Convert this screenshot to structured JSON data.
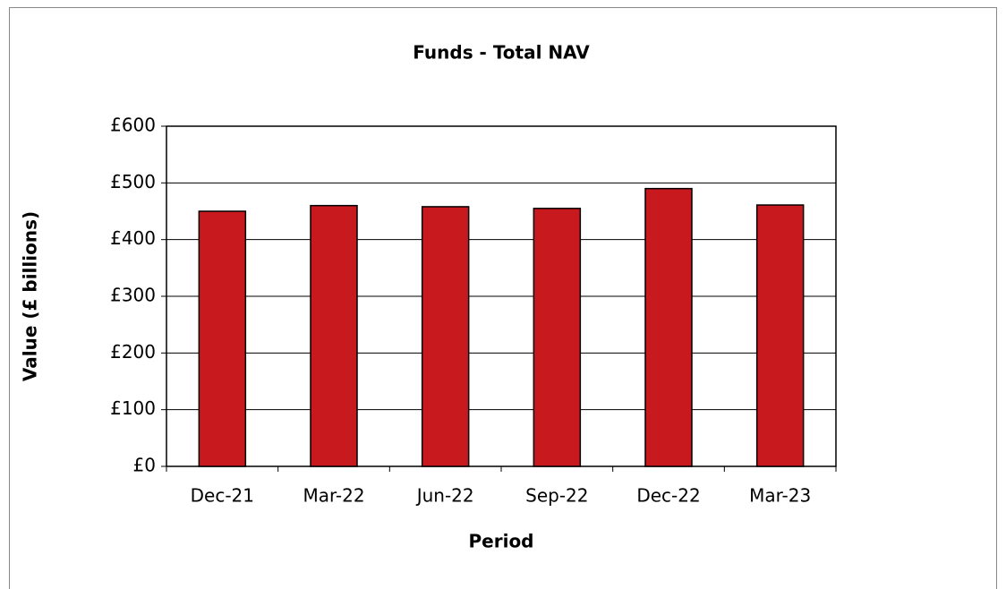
{
  "chart_data": {
    "type": "bar",
    "title": "Funds - Total NAV",
    "x_label": "Period",
    "y_label": "Value (£ billions)",
    "categories": [
      "Dec-21",
      "Mar-22",
      "Jun-22",
      "Sep-22",
      "Dec-22",
      "Mar-23"
    ],
    "values": [
      450,
      460,
      458,
      455,
      490,
      461
    ],
    "color": "#c8191e",
    "ylim": [
      0,
      600
    ],
    "yticks": [
      {
        "value": 0,
        "label": "£0"
      },
      {
        "value": 100,
        "label": "£100"
      },
      {
        "value": 200,
        "label": "£200"
      },
      {
        "value": 300,
        "label": "£300"
      },
      {
        "value": 400,
        "label": "£400"
      },
      {
        "value": 500,
        "label": "£500"
      },
      {
        "value": 600,
        "label": "£600"
      }
    ],
    "grid": true
  }
}
